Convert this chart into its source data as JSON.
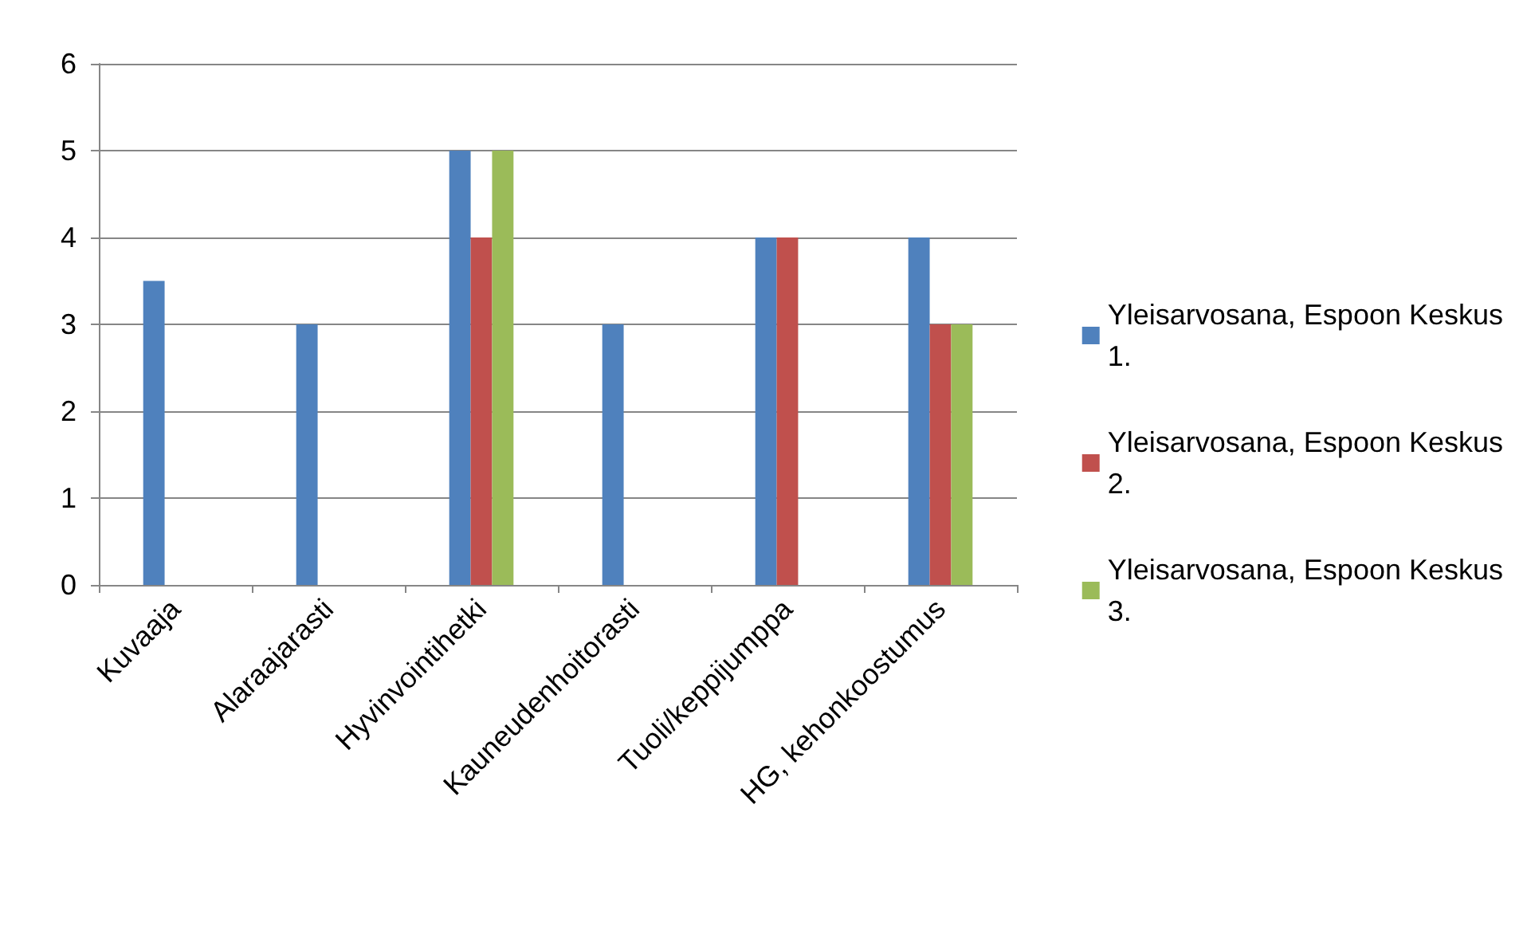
{
  "chart_data": {
    "type": "bar",
    "categories": [
      "Kuvaaja",
      "Alaraajarasti",
      "Hyvinvointihetki",
      "Kauneudenhoitorasti",
      "Tuoli/keppijumppa",
      "HG, kehonkoostumus"
    ],
    "series": [
      {
        "name": "Yleisarvosana, Espoon Keskus 1.",
        "color": "#4f81bd",
        "values": [
          3.5,
          3,
          5,
          3,
          4,
          4
        ]
      },
      {
        "name": "Yleisarvosana, Espoon Keskus 2.",
        "color": "#c0504d",
        "values": [
          null,
          null,
          4,
          null,
          4,
          3
        ]
      },
      {
        "name": "Yleisarvosana, Espoon Keskus 3.",
        "color": "#9bbb59",
        "values": [
          null,
          null,
          5,
          null,
          null,
          3
        ]
      }
    ],
    "ylim": [
      0,
      6
    ],
    "yticks": [
      0,
      1,
      2,
      3,
      4,
      5,
      6
    ],
    "grid": "y",
    "legend": "right"
  }
}
